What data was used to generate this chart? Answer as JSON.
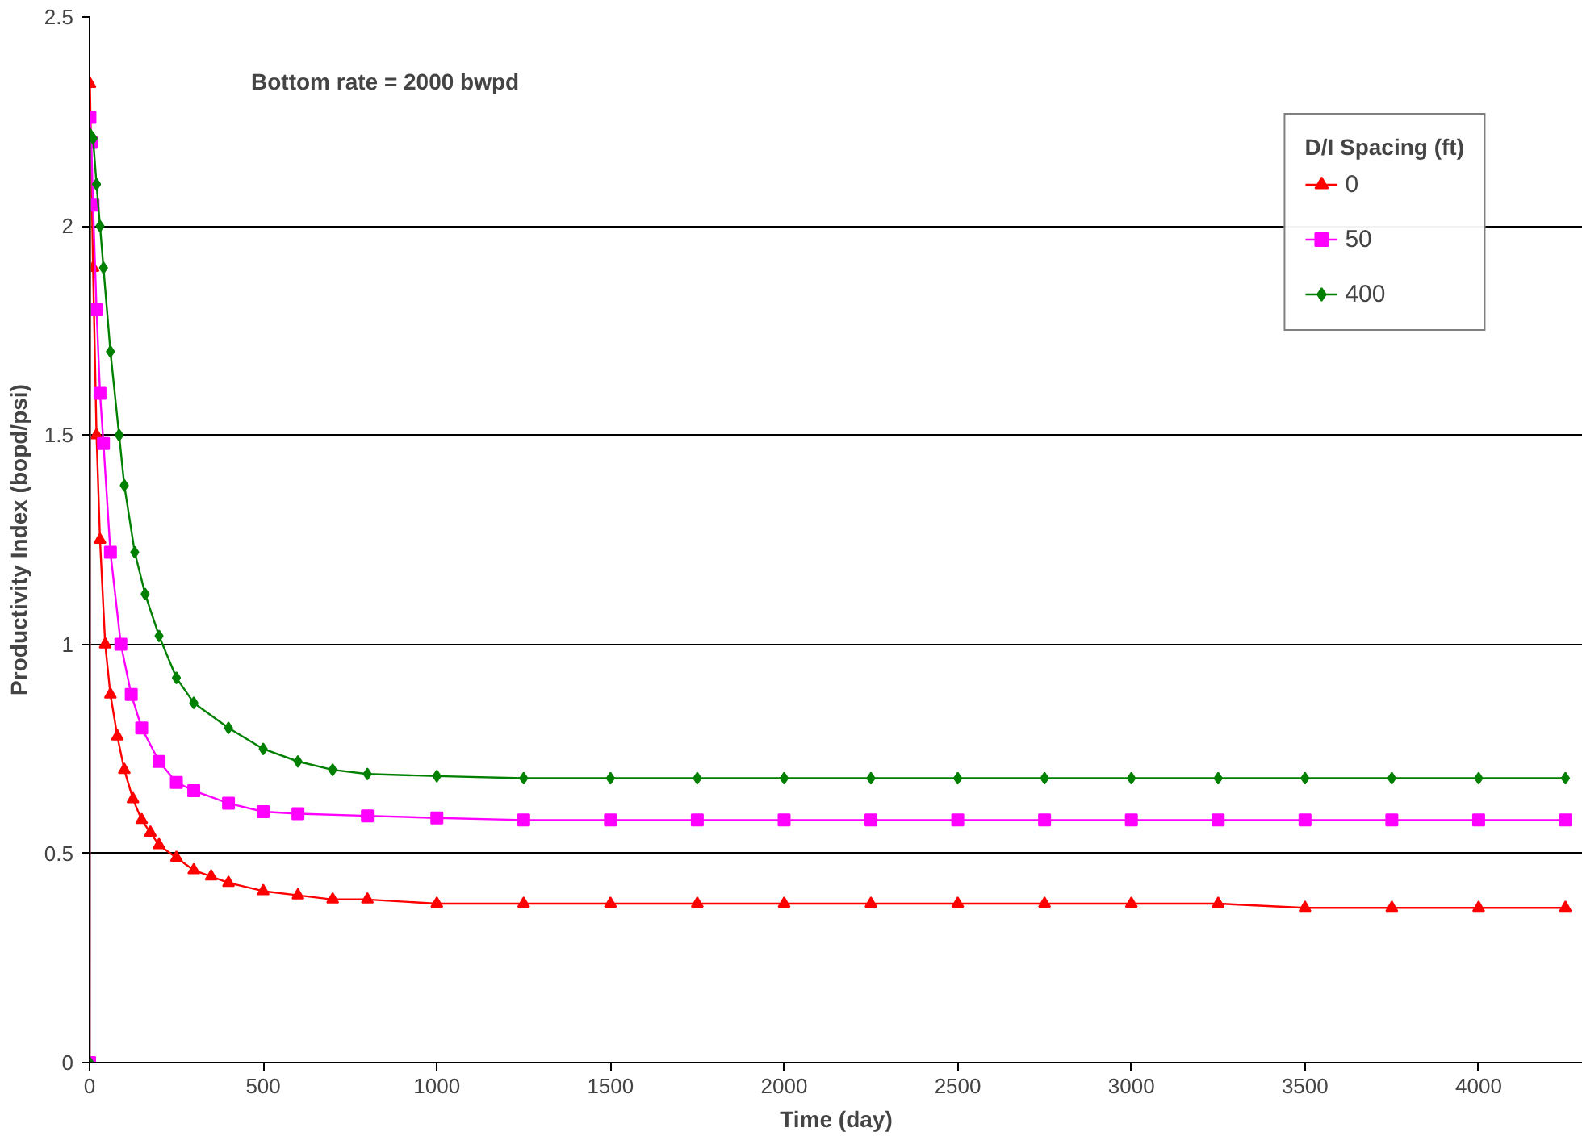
{
  "chart_data": {
    "type": "line",
    "xlabel": "Time (day)",
    "ylabel": "Productivity Index (bopd/psi)",
    "legend_title": "D/I Spacing (ft)",
    "annotations": [
      "Bottom rate = 2000 bwpd"
    ],
    "xlim": [
      0,
      4300
    ],
    "ylim": [
      0,
      2.5
    ],
    "xticks": [
      0,
      500,
      1000,
      1500,
      2000,
      2500,
      3000,
      3500,
      4000
    ],
    "yticks": [
      0,
      0.5,
      1,
      1.5,
      2,
      2.5
    ],
    "grid": "y",
    "legend": "top right",
    "series": [
      {
        "name": "0",
        "color": "#ff0000",
        "marker": "triangle",
        "x": [
          0,
          1,
          10,
          20,
          30,
          45,
          60,
          80,
          100,
          125,
          150,
          175,
          200,
          250,
          300,
          350,
          400,
          500,
          600,
          700,
          800,
          1000,
          1250,
          1500,
          1750,
          2000,
          2250,
          2500,
          2750,
          3000,
          3250,
          3500,
          3750,
          4000,
          4250
        ],
        "values": [
          0,
          2.34,
          1.9,
          1.5,
          1.25,
          1.0,
          0.88,
          0.78,
          0.7,
          0.63,
          0.58,
          0.55,
          0.52,
          0.49,
          0.46,
          0.445,
          0.43,
          0.41,
          0.4,
          0.39,
          0.39,
          0.38,
          0.38,
          0.38,
          0.38,
          0.38,
          0.38,
          0.38,
          0.38,
          0.38,
          0.38,
          0.37,
          0.37,
          0.37,
          0.37
        ]
      },
      {
        "name": "50",
        "color": "#ff00ff",
        "marker": "square",
        "x": [
          0,
          1,
          5,
          10,
          20,
          30,
          40,
          60,
          90,
          120,
          150,
          200,
          250,
          300,
          400,
          500,
          600,
          800,
          1000,
          1250,
          1500,
          1750,
          2000,
          2250,
          2500,
          2750,
          3000,
          3250,
          3500,
          3750,
          4000,
          4250
        ],
        "values": [
          0,
          2.26,
          2.2,
          2.05,
          1.8,
          1.6,
          1.48,
          1.22,
          1.0,
          0.88,
          0.8,
          0.72,
          0.67,
          0.65,
          0.62,
          0.6,
          0.595,
          0.59,
          0.585,
          0.58,
          0.58,
          0.58,
          0.58,
          0.58,
          0.58,
          0.58,
          0.58,
          0.58,
          0.58,
          0.58,
          0.58,
          0.58
        ]
      },
      {
        "name": "400",
        "color": "#008000",
        "marker": "diamond",
        "x": [
          0,
          1,
          10,
          20,
          30,
          40,
          60,
          85,
          100,
          130,
          160,
          200,
          250,
          300,
          400,
          500,
          600,
          700,
          800,
          1000,
          1250,
          1500,
          1750,
          2000,
          2250,
          2500,
          2750,
          3000,
          3250,
          3500,
          3750,
          4000,
          4250
        ],
        "values": [
          0,
          2.22,
          2.21,
          2.1,
          2.0,
          1.9,
          1.7,
          1.5,
          1.38,
          1.22,
          1.12,
          1.02,
          0.92,
          0.86,
          0.8,
          0.75,
          0.72,
          0.7,
          0.69,
          0.685,
          0.68,
          0.68,
          0.68,
          0.68,
          0.68,
          0.68,
          0.68,
          0.68,
          0.68,
          0.68,
          0.68,
          0.68,
          0.68
        ]
      }
    ]
  }
}
